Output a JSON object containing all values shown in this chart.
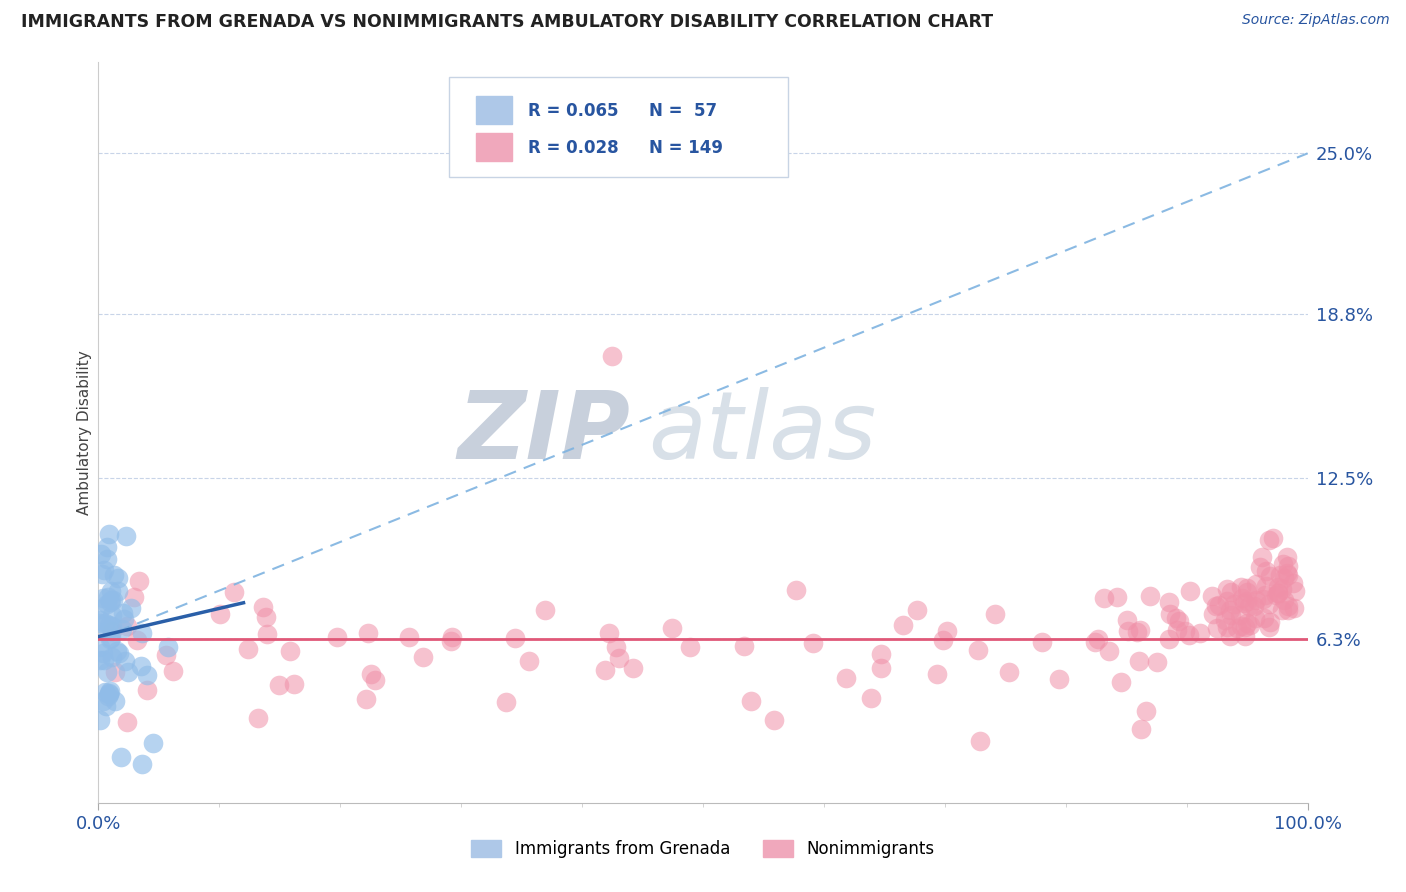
{
  "title": "IMMIGRANTS FROM GRENADA VS NONIMMIGRANTS AMBULATORY DISABILITY CORRELATION CHART",
  "source_text": "Source: ZipAtlas.com",
  "ylabel": "Ambulatory Disability",
  "x_min": 0.0,
  "x_max": 1.0,
  "y_min": 0.0,
  "y_max": 0.285,
  "y_ticks": [
    0.063,
    0.125,
    0.188,
    0.25
  ],
  "y_tick_labels": [
    "6.3%",
    "12.5%",
    "18.8%",
    "25.0%"
  ],
  "blue_trend_start_y": 0.063,
  "blue_trend_end_y": 0.25,
  "pink_trend_y": 0.063,
  "blue_color": "#7fb3e0",
  "blue_dot_color": "#90bce8",
  "blue_solid_color": "#2a5fa8",
  "pink_color": "#f090a8",
  "pink_solid_color": "#e05878",
  "grid_color": "#c8d4e8",
  "watermark_zip_color": "#c8d0dc",
  "watermark_atlas_color": "#d8e0e8",
  "legend_box_color": "#f0f4f8",
  "legend_border_color": "#c8d4e4",
  "text_color": "#2855a0",
  "title_color": "#222222",
  "background_color": "#ffffff"
}
